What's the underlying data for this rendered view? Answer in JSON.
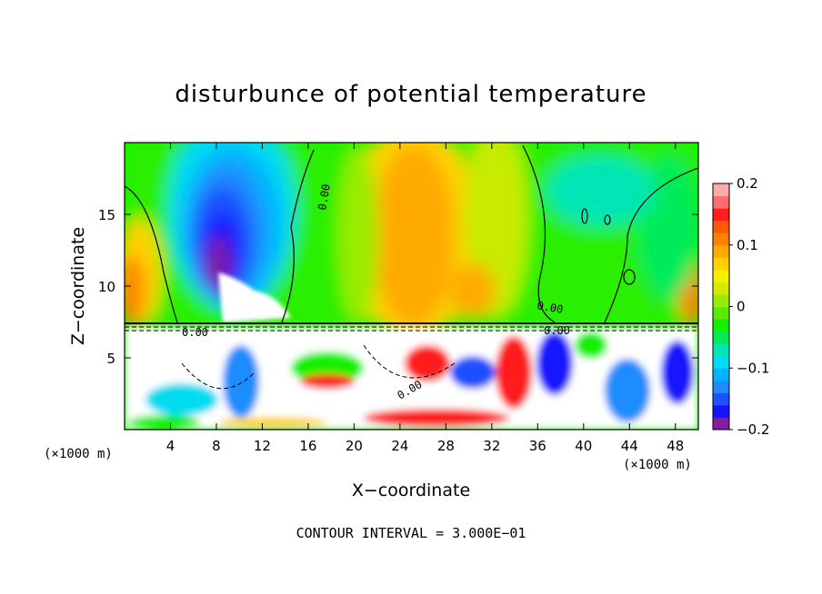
{
  "chart_data": {
    "type": "heatmap",
    "title": "disturbunce of potential temperature",
    "xlabel": "X−coordinate",
    "ylabel": "Z−coordinate",
    "x_unit_left": "(×1000 m)",
    "x_unit_right": "(×1000 m)",
    "xlim": [
      0,
      50
    ],
    "ylim": [
      0,
      20
    ],
    "x_ticks": [
      4,
      8,
      12,
      16,
      20,
      24,
      28,
      32,
      36,
      40,
      44,
      48
    ],
    "x_tick_labels": [
      "4",
      "8",
      "12",
      "16",
      "20",
      "24",
      "28",
      "32",
      "36",
      "40",
      "44",
      "48"
    ],
    "y_ticks": [
      5,
      10,
      15
    ],
    "y_tick_labels": [
      "5",
      "10",
      "15"
    ],
    "colorbar": {
      "min": -0.2,
      "max": 0.2,
      "tick_values": [
        0.2,
        0.1,
        0,
        -0.1,
        -0.2
      ],
      "tick_labels": [
        "0.2",
        "0.1",
        "0",
        "−0.1",
        "−0.2"
      ],
      "colors": [
        "#7f1fa0",
        "#1414ff",
        "#1e50ff",
        "#1e8cff",
        "#00b4ff",
        "#00dcf0",
        "#00e6b4",
        "#00eb5a",
        "#14f000",
        "#5aeb00",
        "#9beb00",
        "#d2eb00",
        "#f5f000",
        "#ffd200",
        "#ffaa00",
        "#ff8200",
        "#ff5a00",
        "#ff1e1e",
        "#ff6e6e",
        "#ffaaaa"
      ]
    },
    "contour_labels": [
      "0.00",
      "0.00",
      "0.00",
      "0.00",
      "0.00"
    ],
    "footer": "CONTOUR INTERVAL = 3.000E−01",
    "grid": false
  }
}
